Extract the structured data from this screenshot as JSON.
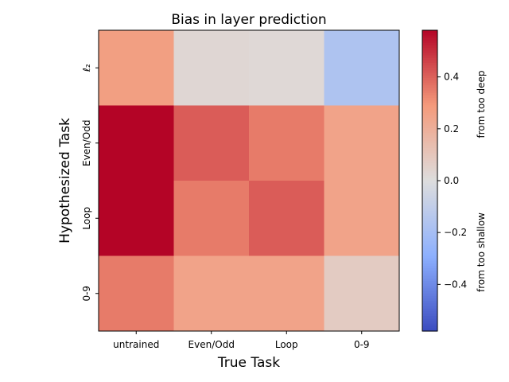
{
  "chart_data": {
    "type": "heatmap",
    "title": "Bias in layer prediction",
    "xlabel": "True Task",
    "ylabel": "Hypothesized Task",
    "x_categories": [
      "untrained",
      "Even/Odd",
      "Loop",
      "0-9"
    ],
    "y_categories": [
      "ℓ₂",
      "Even/Odd",
      "Loop",
      "0-9"
    ],
    "values": [
      [
        0.27,
        0.03,
        0.02,
        -0.17
      ],
      [
        0.58,
        0.41,
        0.35,
        0.25
      ],
      [
        0.58,
        0.35,
        0.41,
        0.25
      ],
      [
        0.35,
        0.25,
        0.25,
        0.08
      ]
    ],
    "colorbar": {
      "range": [
        -0.58,
        0.58
      ],
      "ticks": [
        -0.4,
        -0.2,
        0.0,
        0.2,
        0.4
      ],
      "tick_labels": [
        "−0.4",
        "−0.2",
        "0.0",
        "0.2",
        "0.4"
      ],
      "upper_label": "from too deep",
      "lower_label": "from too shallow",
      "colormap": "coolwarm"
    },
    "grid": false
  }
}
